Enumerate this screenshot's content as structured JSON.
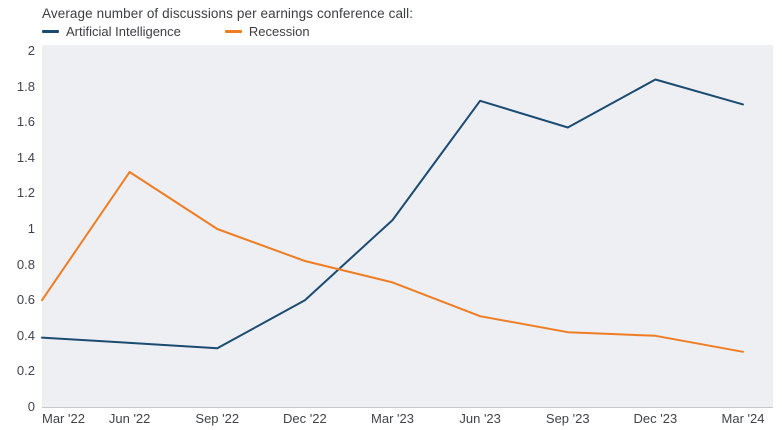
{
  "title": "Average number of discussions per earnings conference call:",
  "chart_data": {
    "type": "line",
    "categories": [
      "Mar '22",
      "Jun '22",
      "Sep '22",
      "Dec '22",
      "Mar '23",
      "Jun '23",
      "Sep '23",
      "Dec '23",
      "Mar '24"
    ],
    "series": [
      {
        "name": "Artificial Intelligence",
        "color": "#1b4b70",
        "values": [
          0.39,
          0.36,
          0.33,
          0.6,
          1.05,
          1.72,
          1.57,
          1.84,
          1.7
        ]
      },
      {
        "name": "Recession",
        "color": "#ee7d23",
        "values": [
          0.6,
          1.32,
          1.0,
          0.82,
          0.7,
          0.51,
          0.42,
          0.4,
          0.31
        ]
      }
    ],
    "xlabel": "",
    "ylabel": "",
    "ylim": [
      0,
      2
    ],
    "ytick_labels": [
      "0",
      "0.2",
      "0.4",
      "0.6",
      "0.8",
      "1",
      "1.2",
      "1.4",
      "1.6",
      "1.8",
      "2"
    ],
    "grid": false,
    "legend_position": "top-left",
    "plot_background_color": "#eeeff3",
    "axis_line_color": "#c6c7ca",
    "text_color": "#3d3e42"
  }
}
